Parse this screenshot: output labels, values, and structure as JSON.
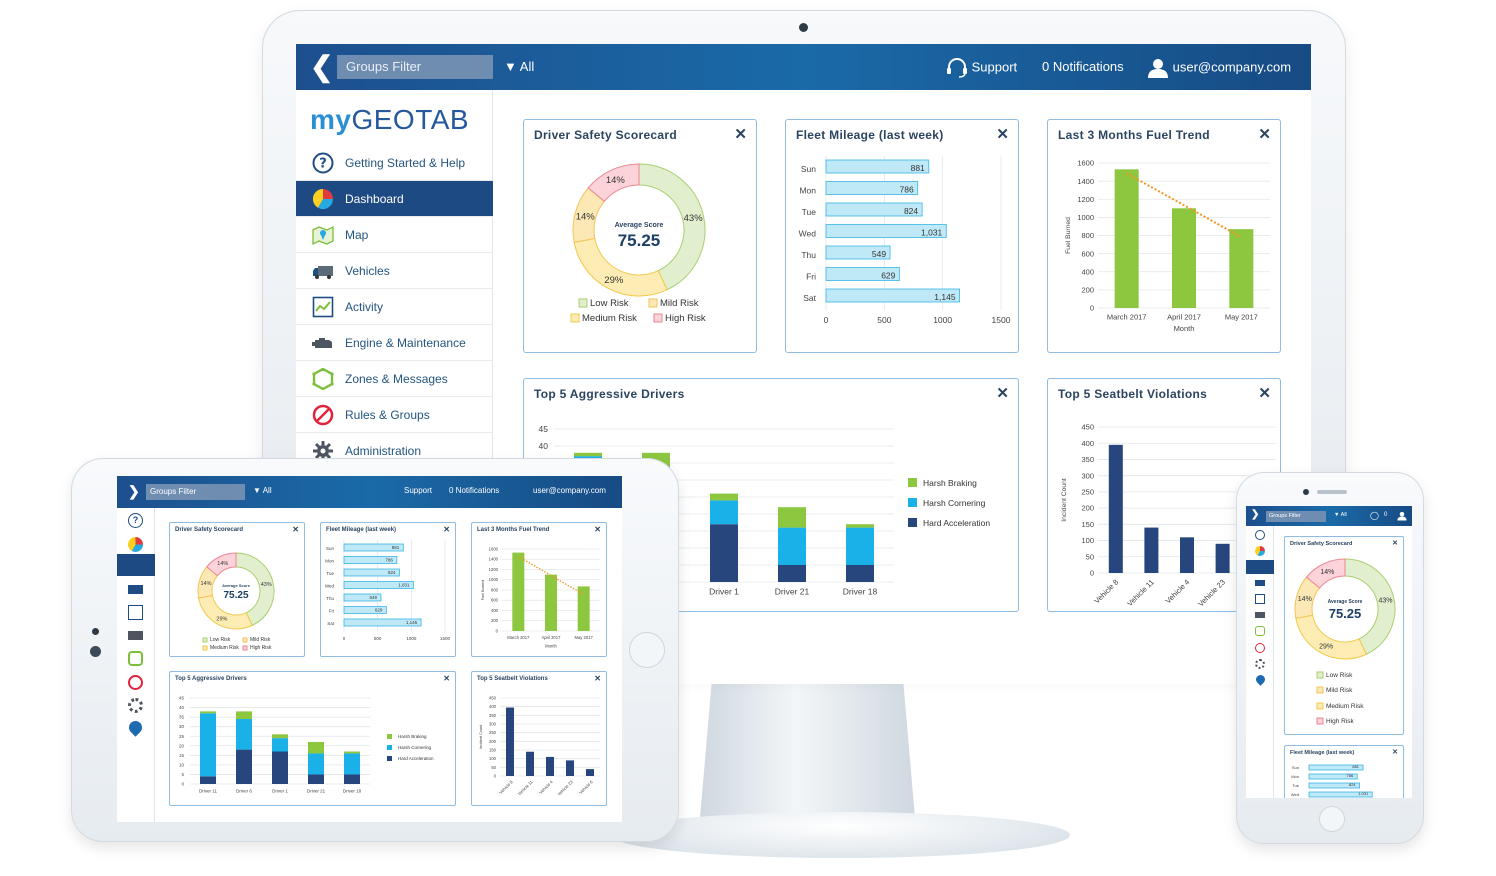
{
  "topbar": {
    "filter_label": "Groups Filter",
    "all_label": "All",
    "support_label": "Support",
    "notifications_label": "0 Notifications",
    "user_label": "user@company.com"
  },
  "brand": {
    "my": "my",
    "geo": "GEOTAB"
  },
  "nav": [
    {
      "label": "Getting Started & Help",
      "icon": "help-icon",
      "active": false
    },
    {
      "label": "Dashboard",
      "icon": "dashboard-pie-icon",
      "active": true
    },
    {
      "label": "Map",
      "icon": "map-icon",
      "active": false
    },
    {
      "label": "Vehicles",
      "icon": "truck-icon",
      "active": false
    },
    {
      "label": "Activity",
      "icon": "activity-chart-icon",
      "active": false
    },
    {
      "label": "Engine & Maintenance",
      "icon": "engine-icon",
      "active": false
    },
    {
      "label": "Zones & Messages",
      "icon": "zone-icon",
      "active": false
    },
    {
      "label": "Rules & Groups",
      "icon": "rules-icon",
      "active": false
    },
    {
      "label": "Administration",
      "icon": "gear-icon",
      "active": false
    }
  ],
  "colors": {
    "topbar": "#1d5a9a",
    "active_nav": "#1d4a83",
    "card_border": "#8fbce0",
    "green": "#8dc63f",
    "cyan": "#1ab0e8",
    "navy": "#27467e",
    "bar_fill": "#bfe9f7",
    "trend": "#f7941d"
  },
  "cards": {
    "driver_safety": {
      "title": "Driver Safety Scorecard",
      "center_label": "Average Score",
      "center_value": "75.25"
    },
    "fleet_mileage": {
      "title": "Fleet Mileage (last week)"
    },
    "fuel_trend": {
      "title": "Last 3 Months Fuel Trend"
    },
    "aggressive": {
      "title": "Top 5 Aggressive Drivers"
    },
    "seatbelt": {
      "title": "Top 5 Seatbelt Violations"
    }
  },
  "chart_data": [
    {
      "type": "pie",
      "title": "Driver Safety Scorecard",
      "categories": [
        "Low Risk",
        "Mild Risk",
        "Medium Risk",
        "High Risk"
      ],
      "values": [
        43,
        14,
        29,
        14
      ],
      "labels": [
        "43%",
        "14%",
        "29%",
        "14%"
      ],
      "colors": [
        "#e2efcf",
        "#fbe8b4",
        "#fdedb4",
        "#fbd3d9"
      ],
      "annotation": {
        "label": "Average Score",
        "value": 75.25
      },
      "legend": "bottom"
    },
    {
      "type": "bar",
      "orientation": "horizontal",
      "title": "Fleet Mileage (last week)",
      "categories": [
        "Sun",
        "Mon",
        "Tue",
        "Wed",
        "Thu",
        "Fri",
        "Sat"
      ],
      "values": [
        881,
        786,
        824,
        1031,
        549,
        629,
        1145
      ],
      "data_labels": [
        "881",
        "786",
        "824",
        "1,031",
        "549",
        "629",
        "1,145"
      ],
      "xlim": [
        0,
        1500
      ],
      "xticks": [
        0,
        500,
        1000,
        1500
      ]
    },
    {
      "type": "bar",
      "title": "Last 3 Months Fuel Trend",
      "categories": [
        "March 2017",
        "April 2017",
        "May 2017"
      ],
      "values": [
        1530,
        1100,
        870
      ],
      "xlabel": "Month",
      "ylabel": "Fuel Burned",
      "ylim": [
        0,
        1600
      ],
      "yticks": [
        0,
        200,
        400,
        600,
        800,
        1000,
        1200,
        1400,
        1600
      ],
      "trendline": true
    },
    {
      "type": "bar",
      "stacked": true,
      "title": "Top 5 Aggressive Drivers",
      "categories": [
        "Driver 11",
        "Driver 6",
        "Driver 1",
        "Driver 21",
        "Driver 18"
      ],
      "series": [
        {
          "name": "Hard Acceleration",
          "values": [
            4,
            18,
            17,
            5,
            5
          ]
        },
        {
          "name": "Harsh Cornering",
          "values": [
            33,
            16,
            7,
            11,
            11
          ]
        },
        {
          "name": "Harsh Braking",
          "values": [
            1,
            4,
            2,
            6,
            1
          ]
        }
      ],
      "ylim": [
        0,
        45
      ],
      "yticks": [
        0,
        5,
        10,
        15,
        20,
        25,
        30,
        35,
        40,
        45
      ],
      "legend": "right"
    },
    {
      "type": "bar",
      "title": "Top 5 Seatbelt Violations",
      "categories": [
        "Vehicle 8",
        "Vehicle 11",
        "Vehicle 4",
        "Vehicle 23",
        "Vehicle 6"
      ],
      "values": [
        395,
        140,
        110,
        90,
        40
      ],
      "ylabel": "Incident Count",
      "ylim": [
        0,
        450
      ],
      "yticks": [
        0,
        50,
        100,
        150,
        200,
        250,
        300,
        350,
        400,
        450
      ]
    }
  ]
}
